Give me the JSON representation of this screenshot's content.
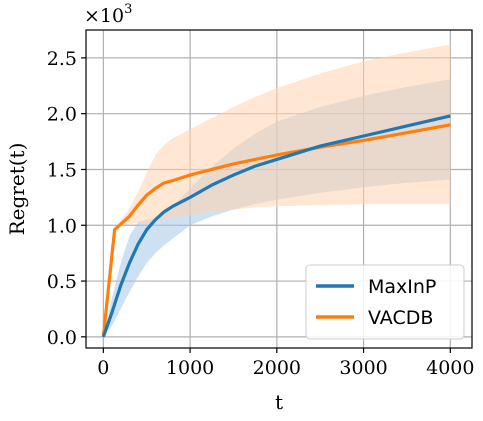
{
  "chart_data": {
    "type": "line",
    "xlabel": "t",
    "ylabel": "Regret(t)",
    "y_multiplier": {
      "base": "×10",
      "exponent": "3"
    },
    "xlim": [
      -200,
      4250
    ],
    "ylim": [
      -0.1,
      2.75
    ],
    "x_ticks": [
      0,
      1000,
      2000,
      3000,
      4000
    ],
    "x_tick_labels": [
      "0",
      "1000",
      "2000",
      "3000",
      "4000"
    ],
    "y_ticks": [
      0.0,
      0.5,
      1.0,
      1.5,
      2.0,
      2.5
    ],
    "y_tick_labels": [
      "0.0",
      "0.5",
      "1.0",
      "1.5",
      "2.0",
      "2.5"
    ],
    "grid": true,
    "legend_position": "bottom-right",
    "series": [
      {
        "name": "MaxInP",
        "color": "#1f77b4",
        "band_color": "#a6c9e8",
        "x": [
          0,
          100,
          200,
          300,
          400,
          500,
          600,
          700,
          800,
          900,
          1000,
          1250,
          1500,
          1750,
          2000,
          2500,
          3000,
          3500,
          4000
        ],
        "y": [
          0.0,
          0.22,
          0.46,
          0.66,
          0.83,
          0.96,
          1.05,
          1.12,
          1.17,
          1.21,
          1.25,
          1.36,
          1.45,
          1.53,
          1.59,
          1.71,
          1.8,
          1.89,
          1.98
        ],
        "lower": [
          0.0,
          0.1,
          0.25,
          0.4,
          0.54,
          0.66,
          0.75,
          0.82,
          0.88,
          0.94,
          1.0,
          1.08,
          1.14,
          1.19,
          1.23,
          1.29,
          1.34,
          1.38,
          1.41
        ],
        "upper": [
          0.0,
          0.35,
          0.66,
          0.9,
          1.03,
          1.05,
          1.06,
          1.1,
          1.17,
          1.25,
          1.33,
          1.52,
          1.69,
          1.82,
          1.93,
          2.06,
          2.16,
          2.24,
          2.31
        ]
      },
      {
        "name": "VACDB",
        "color": "#ff7f0e",
        "band_color": "#ffd3ae",
        "x": [
          0,
          130,
          200,
          300,
          400,
          500,
          600,
          700,
          800,
          1000,
          1250,
          1500,
          1750,
          2000,
          2500,
          3000,
          3500,
          4000
        ],
        "y": [
          0.0,
          0.96,
          1.01,
          1.08,
          1.18,
          1.27,
          1.33,
          1.38,
          1.4,
          1.45,
          1.5,
          1.55,
          1.59,
          1.63,
          1.7,
          1.76,
          1.83,
          1.9
        ],
        "lower": [
          0.0,
          0.96,
          0.99,
          1.01,
          1.02,
          1.02,
          1.03,
          1.05,
          1.07,
          1.09,
          1.12,
          1.14,
          1.16,
          1.17,
          1.18,
          1.19,
          1.19,
          1.19
        ],
        "upper": [
          0.0,
          0.96,
          1.04,
          1.15,
          1.3,
          1.47,
          1.63,
          1.72,
          1.78,
          1.86,
          1.96,
          2.06,
          2.15,
          2.23,
          2.36,
          2.47,
          2.55,
          2.62
        ]
      }
    ]
  }
}
